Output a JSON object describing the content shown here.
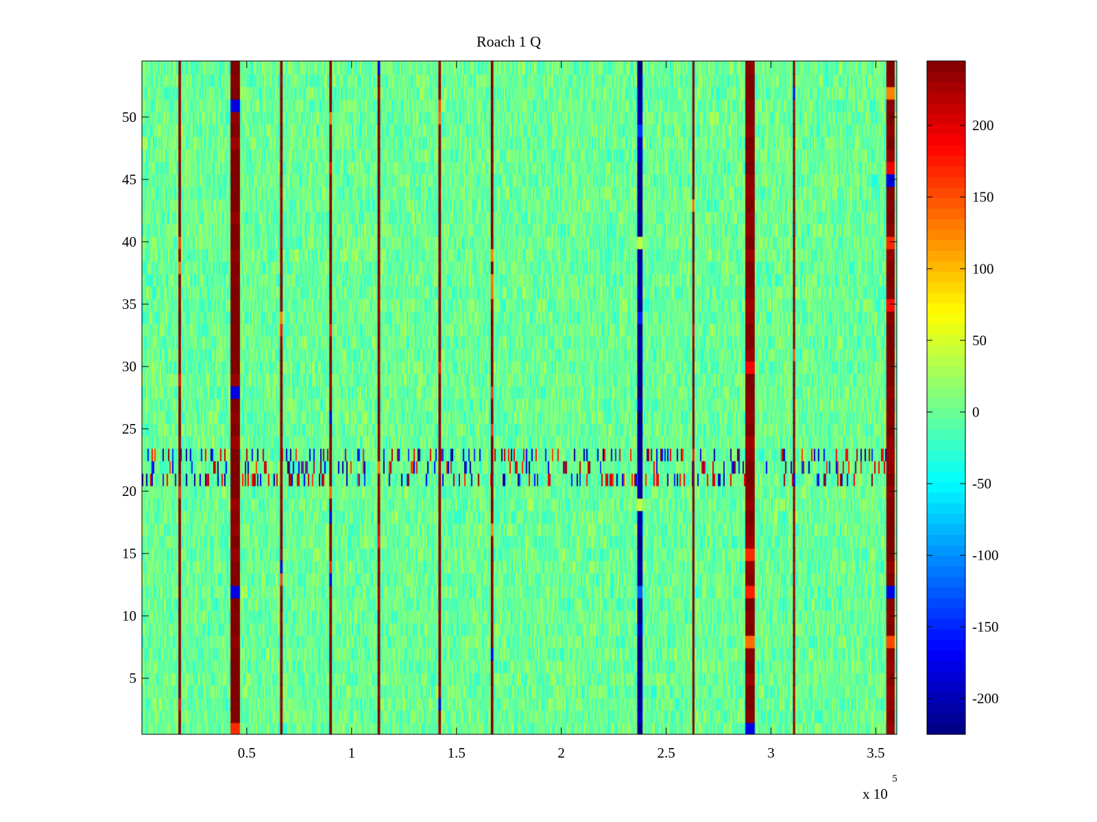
{
  "chart_data": {
    "type": "heatmap",
    "title": "Roach 1 Q",
    "xlabel": "",
    "ylabel": "",
    "x_multiplier": "x 10",
    "x_multiplier_exponent": "5",
    "xlim": [
      0,
      360000
    ],
    "ylim": [
      0.5,
      54.5
    ],
    "xticks": [
      {
        "value": 50000,
        "label": "0.5"
      },
      {
        "value": 100000,
        "label": "1"
      },
      {
        "value": 150000,
        "label": "1.5"
      },
      {
        "value": 200000,
        "label": "2"
      },
      {
        "value": 250000,
        "label": "2.5"
      },
      {
        "value": 300000,
        "label": "3"
      },
      {
        "value": 350000,
        "label": "3.5"
      }
    ],
    "yticks": [
      {
        "value": 5,
        "label": "5"
      },
      {
        "value": 10,
        "label": "10"
      },
      {
        "value": 15,
        "label": "15"
      },
      {
        "value": 20,
        "label": "20"
      },
      {
        "value": 25,
        "label": "25"
      },
      {
        "value": 30,
        "label": "30"
      },
      {
        "value": 35,
        "label": "35"
      },
      {
        "value": 40,
        "label": "40"
      },
      {
        "value": 45,
        "label": "45"
      },
      {
        "value": 50,
        "label": "50"
      }
    ],
    "colorbar": {
      "colormap": "jet",
      "clim": [
        -225,
        245
      ],
      "ticks": [
        {
          "value": 200,
          "label": "200"
        },
        {
          "value": 150,
          "label": "150"
        },
        {
          "value": 100,
          "label": "100"
        },
        {
          "value": 50,
          "label": "50"
        },
        {
          "value": 0,
          "label": "0"
        },
        {
          "value": -50,
          "label": "-50"
        },
        {
          "value": -100,
          "label": "-100"
        },
        {
          "value": -150,
          "label": "-150"
        },
        {
          "value": -200,
          "label": "-200"
        }
      ]
    },
    "background_value_range": [
      -40,
      40
    ],
    "strong_columns": [
      {
        "x": 18000,
        "width": 1200,
        "value": 245
      },
      {
        "x": 44500,
        "width": 4500,
        "value": 245
      },
      {
        "x": 66500,
        "width": 1200,
        "value": 245
      },
      {
        "x": 90000,
        "width": 1200,
        "value": 245
      },
      {
        "x": 113000,
        "width": 1200,
        "value": 245
      },
      {
        "x": 142000,
        "width": 1200,
        "value": 245
      },
      {
        "x": 167000,
        "width": 1200,
        "value": 245
      },
      {
        "x": 237500,
        "width": 2500,
        "value": -210
      },
      {
        "x": 263000,
        "width": 1000,
        "value": 245
      },
      {
        "x": 290000,
        "width": 4500,
        "value": 245
      },
      {
        "x": 311000,
        "width": 1000,
        "value": 245
      },
      {
        "x": 357000,
        "width": 4000,
        "value": 245
      }
    ],
    "noisy_rows": [
      21,
      22,
      23
    ]
  }
}
